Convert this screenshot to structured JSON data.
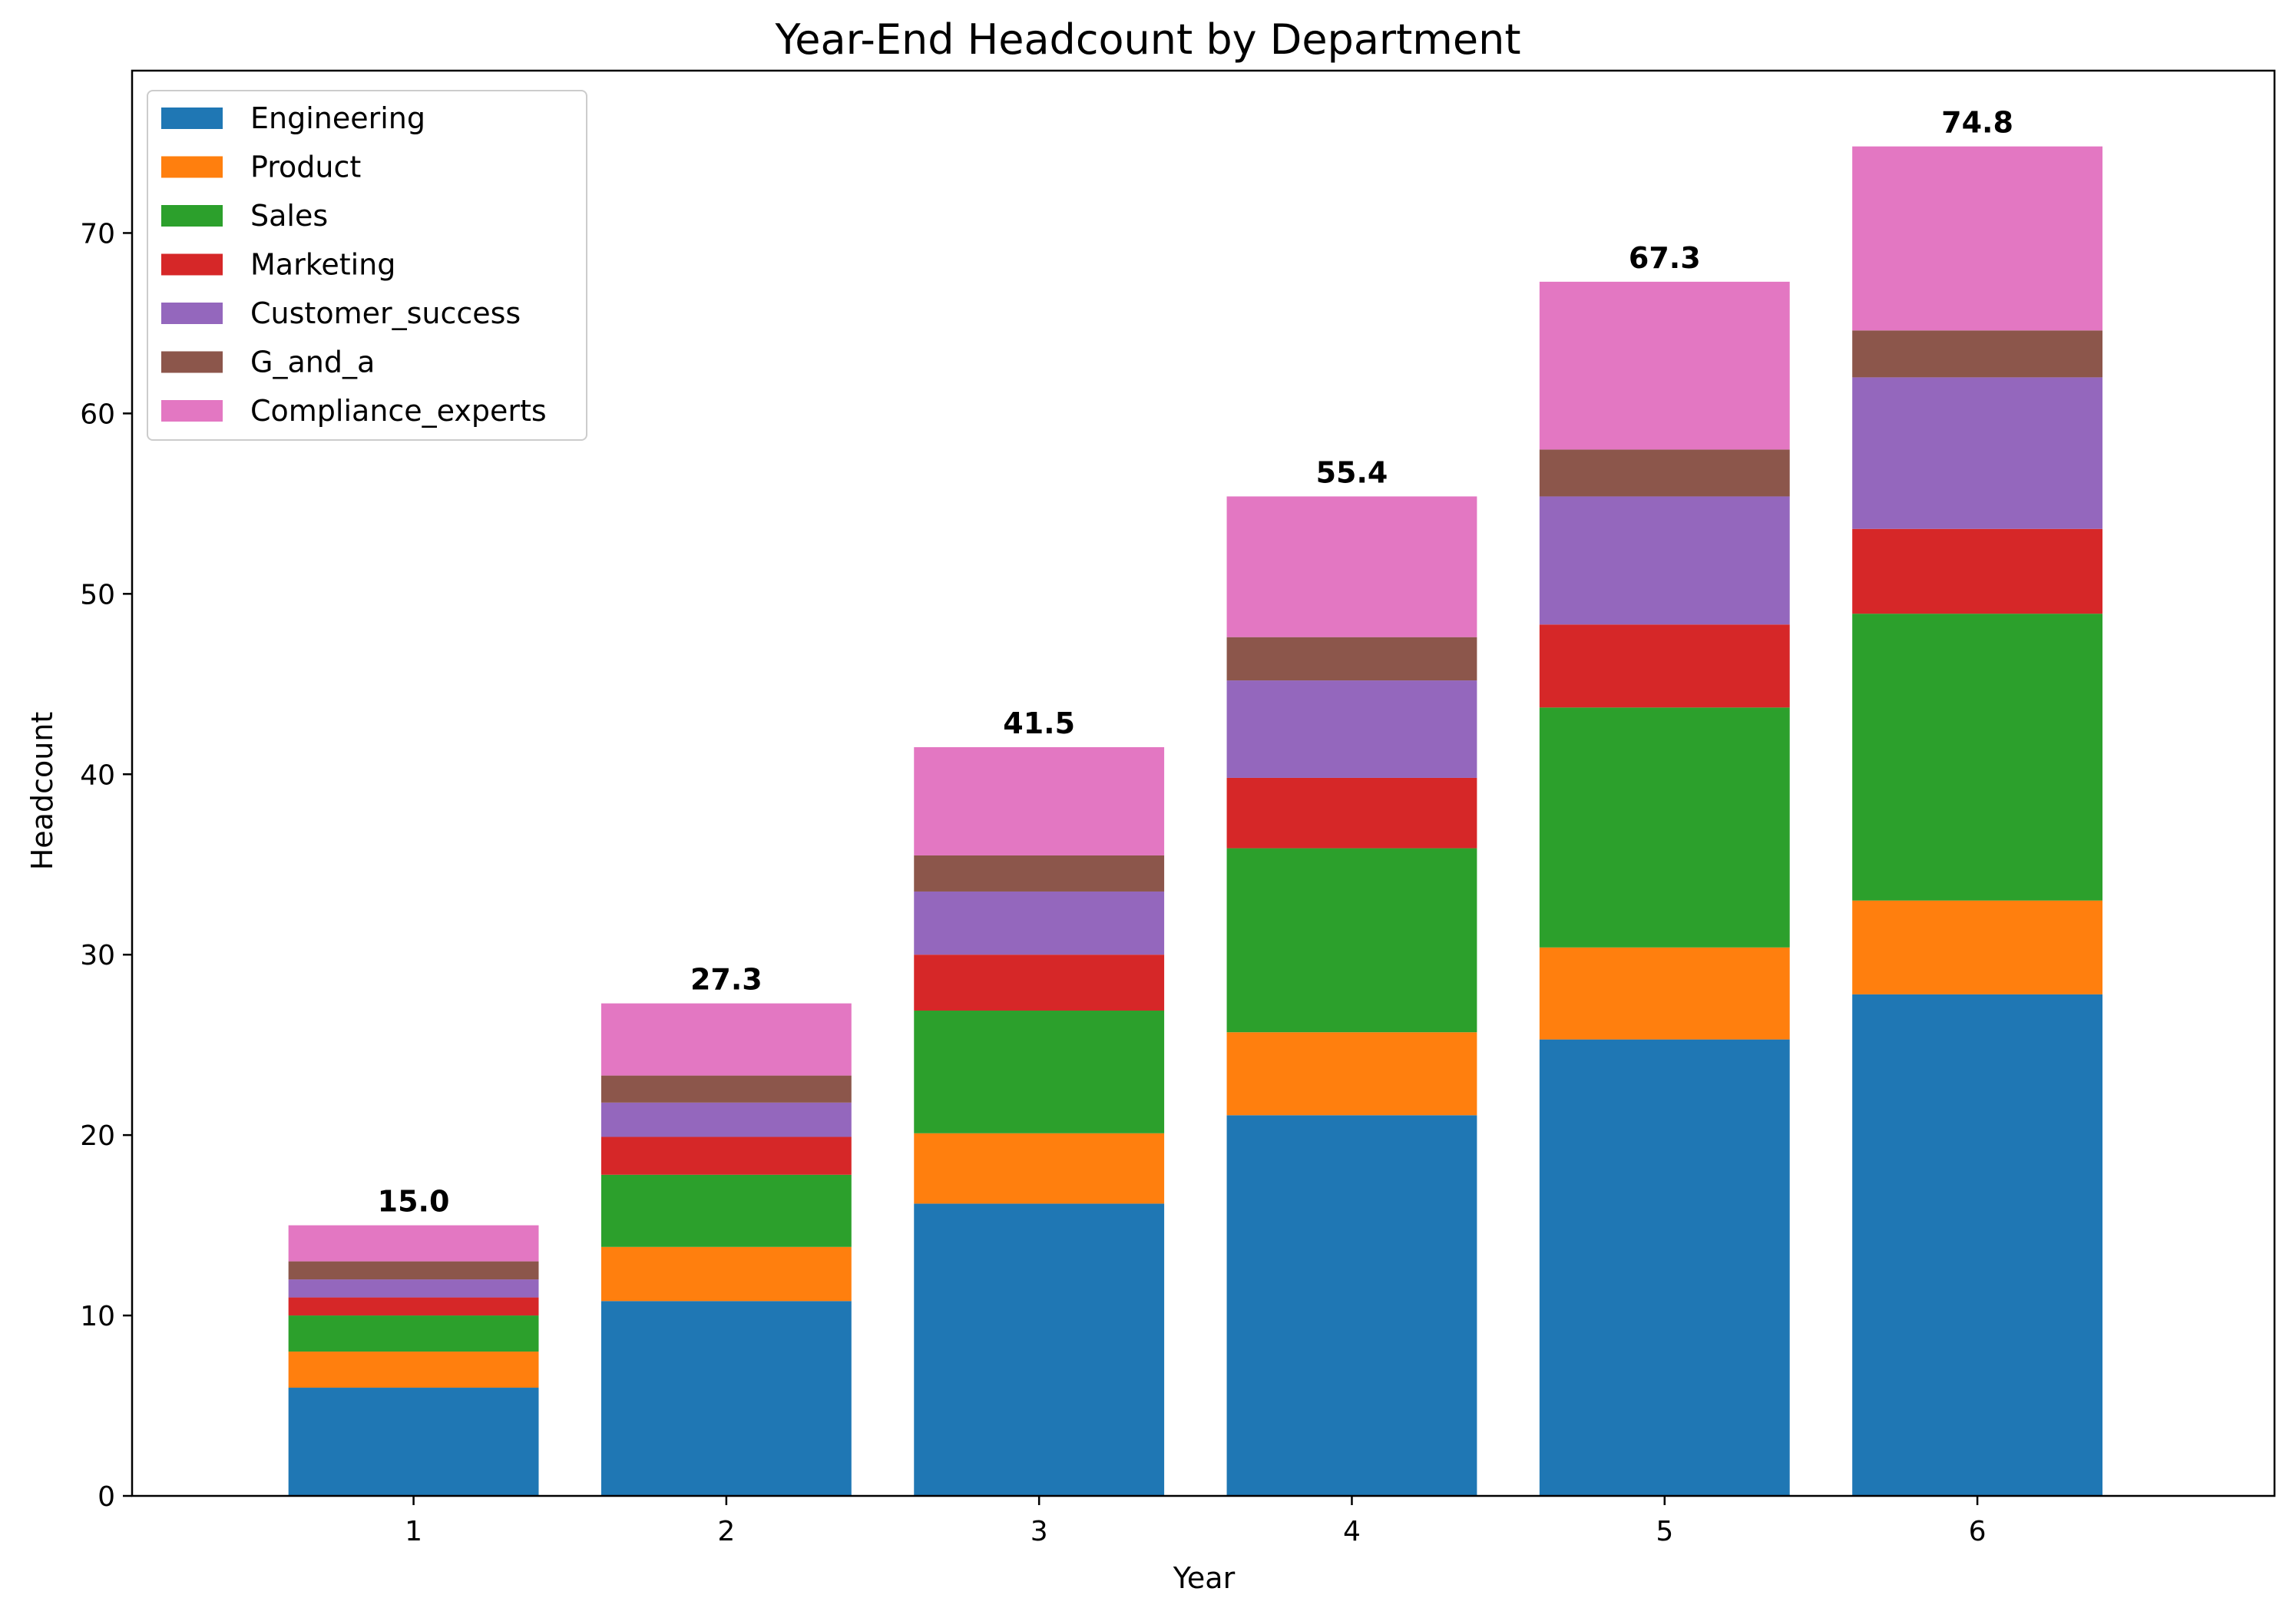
{
  "chart_data": {
    "type": "bar",
    "stacked": true,
    "title": "Year-End Headcount by Department",
    "xlabel": "Year",
    "ylabel": "Headcount",
    "categories": [
      "1",
      "2",
      "3",
      "4",
      "5",
      "6"
    ],
    "ylim": [
      0,
      79
    ],
    "yticks": [
      0,
      10,
      20,
      30,
      40,
      50,
      60,
      70
    ],
    "grid": false,
    "legend_position": "top-left",
    "series": [
      {
        "name": "Engineering",
        "color": "#1f77b4",
        "values": [
          6.0,
          10.8,
          16.2,
          21.1,
          25.3,
          27.8
        ]
      },
      {
        "name": "Product",
        "color": "#ff7f0e",
        "values": [
          2.0,
          3.0,
          3.9,
          4.6,
          5.1,
          5.2
        ]
      },
      {
        "name": "Sales",
        "color": "#2ca02c",
        "values": [
          2.0,
          4.0,
          6.8,
          10.2,
          13.3,
          15.9
        ]
      },
      {
        "name": "Marketing",
        "color": "#d62728",
        "values": [
          1.0,
          2.1,
          3.1,
          3.9,
          4.6,
          4.7
        ]
      },
      {
        "name": "Customer_success",
        "color": "#9467bd",
        "values": [
          1.0,
          1.9,
          3.5,
          5.4,
          7.1,
          8.4
        ]
      },
      {
        "name": "G_and_a",
        "color": "#8c564b",
        "values": [
          1.0,
          1.5,
          2.0,
          2.4,
          2.6,
          2.6
        ]
      },
      {
        "name": "Compliance_experts",
        "color": "#e377c2",
        "values": [
          2.0,
          4.0,
          6.0,
          7.8,
          9.3,
          10.2
        ]
      }
    ],
    "totals": [
      "15.0",
      "27.3",
      "41.5",
      "55.4",
      "67.3",
      "74.8"
    ]
  }
}
